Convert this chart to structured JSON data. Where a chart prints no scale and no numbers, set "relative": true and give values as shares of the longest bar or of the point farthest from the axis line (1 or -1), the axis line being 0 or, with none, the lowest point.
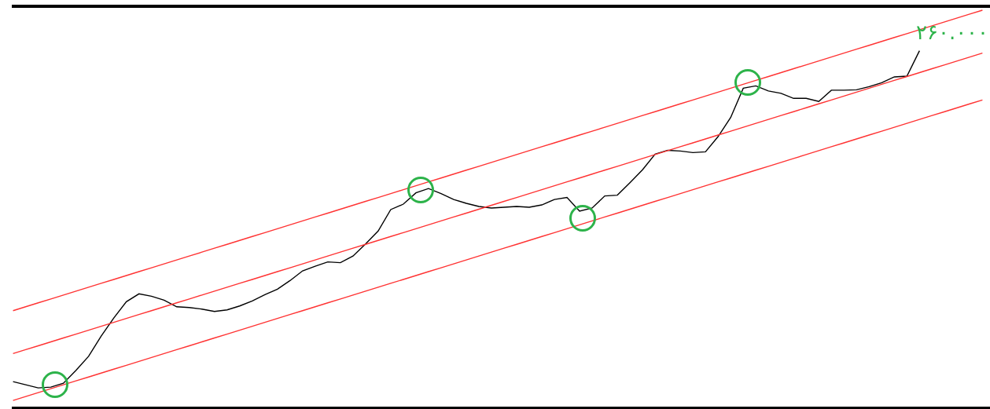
{
  "chart_data": {
    "type": "line",
    "relative": true,
    "grid": false,
    "annotations": [
      "۲۶۰.۰۰۰"
    ],
    "categories": [
      null,
      null,
      null,
      null,
      null,
      null,
      null,
      null,
      null,
      null,
      null,
      null,
      null,
      null,
      null,
      null,
      null,
      null,
      null,
      null,
      null,
      null,
      null,
      null,
      null,
      null,
      null,
      null,
      null,
      null,
      null,
      null,
      null,
      null,
      null,
      null,
      null,
      null,
      null,
      null,
      null,
      null,
      null,
      null,
      null,
      null,
      null,
      null,
      null,
      null,
      null,
      null,
      null,
      null,
      null,
      null,
      null,
      null,
      null,
      null,
      null,
      null,
      null,
      null,
      null,
      null,
      null,
      null,
      null,
      null,
      null,
      null,
      null,
      null,
      null,
      null,
      null,
      null
    ],
    "series": [
      {
        "color": "#000000",
        "marker": "none",
        "values": [
          0.048,
          0.04,
          0.032,
          0.034,
          0.044,
          0.077,
          0.113,
          0.165,
          0.211,
          0.253,
          0.273,
          0.267,
          0.257,
          0.24,
          0.238,
          0.234,
          0.228,
          0.232,
          0.242,
          0.255,
          0.271,
          0.285,
          0.307,
          0.332,
          0.344,
          0.355,
          0.353,
          0.37,
          0.401,
          0.434,
          0.489,
          0.503,
          0.532,
          0.543,
          0.53,
          0.515,
          0.505,
          0.497,
          0.493,
          0.495,
          0.497,
          0.495,
          0.501,
          0.515,
          0.52,
          0.485,
          0.493,
          0.524,
          0.526,
          0.558,
          0.591,
          0.631,
          0.641,
          0.639,
          0.635,
          0.637,
          0.676,
          0.725,
          0.8,
          0.806,
          0.793,
          0.787,
          0.774,
          0.774,
          0.766,
          0.795,
          0.795,
          0.796,
          0.804,
          0.814,
          0.829,
          0.831,
          0.896,
          null,
          null,
          null,
          null,
          null
        ]
      },
      {
        "color": "#ff3333",
        "marker": "none",
        "values": [
          0.23,
          0.24,
          0.25,
          0.26,
          0.27,
          0.28,
          0.29,
          0.3,
          0.31,
          0.32,
          0.33,
          0.34,
          0.35,
          0.36,
          0.37,
          0.38,
          0.39,
          0.4,
          0.41,
          0.42,
          0.43,
          0.44,
          0.45,
          0.46,
          0.47,
          0.48,
          0.49,
          0.5,
          0.51,
          0.52,
          0.53,
          0.54,
          0.55,
          0.56,
          0.57,
          0.58,
          0.59,
          0.6,
          0.61,
          0.62,
          0.63,
          0.64,
          0.65,
          0.66,
          0.67,
          0.68,
          0.69,
          0.7,
          0.71,
          0.72,
          0.73,
          0.74,
          0.75,
          0.76,
          0.77,
          0.78,
          0.79,
          0.8,
          0.81,
          0.82,
          0.83,
          0.84,
          0.85,
          0.86,
          0.87,
          0.88,
          0.89,
          0.9,
          0.91,
          0.92,
          0.93,
          0.94,
          0.95,
          0.96,
          0.97,
          0.98,
          0.99,
          1.0
        ]
      },
      {
        "color": "#ff3333",
        "marker": "none",
        "values": [
          0.12,
          0.13,
          0.14,
          0.15,
          0.16,
          0.17,
          0.18,
          0.19,
          0.2,
          0.21,
          0.22,
          0.23,
          0.24,
          0.25,
          0.26,
          0.27,
          0.28,
          0.29,
          0.3,
          0.31,
          0.32,
          0.33,
          0.34,
          0.35,
          0.36,
          0.37,
          0.38,
          0.39,
          0.4,
          0.41,
          0.42,
          0.43,
          0.44,
          0.45,
          0.46,
          0.47,
          0.48,
          0.49,
          0.5,
          0.51,
          0.52,
          0.53,
          0.54,
          0.55,
          0.56,
          0.57,
          0.58,
          0.59,
          0.6,
          0.61,
          0.62,
          0.63,
          0.64,
          0.65,
          0.66,
          0.67,
          0.68,
          0.69,
          0.7,
          0.71,
          0.72,
          0.73,
          0.74,
          0.75,
          0.76,
          0.77,
          0.78,
          0.79,
          0.8,
          0.81,
          0.82,
          0.83,
          0.84,
          0.85,
          0.86,
          0.87,
          0.88,
          0.89
        ]
      },
      {
        "color": "#ff3333",
        "marker": "none",
        "values": [
          0.0,
          0.01,
          0.02,
          0.03,
          0.04,
          0.05,
          0.06,
          0.07,
          0.08,
          0.09,
          0.1,
          0.11,
          0.12,
          0.13,
          0.14,
          0.15,
          0.16,
          0.17,
          0.18,
          0.19,
          0.2,
          0.21,
          0.22,
          0.23,
          0.24,
          0.25,
          0.26,
          0.27,
          0.28,
          0.29,
          0.3,
          0.31,
          0.32,
          0.33,
          0.34,
          0.35,
          0.36,
          0.37,
          0.38,
          0.39,
          0.4,
          0.41,
          0.42,
          0.43,
          0.44,
          0.45,
          0.46,
          0.47,
          0.48,
          0.49,
          0.5,
          0.51,
          0.52,
          0.53,
          0.54,
          0.55,
          0.56,
          0.57,
          0.58,
          0.59,
          0.6,
          0.61,
          0.62,
          0.63,
          0.64,
          0.65,
          0.66,
          0.67,
          0.68,
          0.69,
          0.7,
          0.71,
          0.72,
          0.73,
          0.74,
          0.75,
          0.76,
          0.77
        ]
      }
    ]
  }
}
